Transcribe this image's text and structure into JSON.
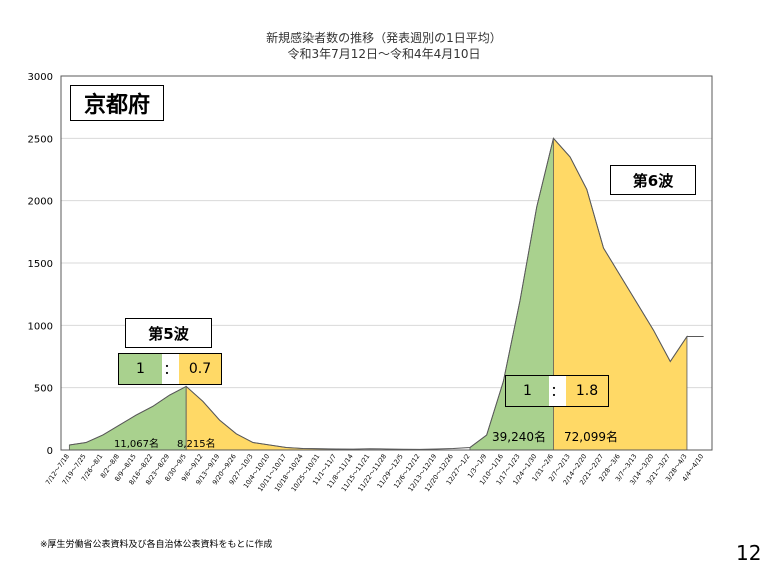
{
  "header": {
    "title_line1": "新規感染者数の推移（発表週別の1日平均）",
    "title_line2": "令和3年7月12日～令和4年4月10日"
  },
  "region_label": "京都府",
  "waves": {
    "wave5": {
      "label": "第5波",
      "ratio_left": "1",
      "ratio_sep": "：",
      "ratio_right": "0.7",
      "count_left": "11,067名",
      "count_right": "8,215名"
    },
    "wave6": {
      "label": "第6波",
      "ratio_left": "1",
      "ratio_sep": "：",
      "ratio_right": "1.8",
      "count_left": "39,240名",
      "count_right": "72,099名"
    }
  },
  "footnote": "※厚生労働省公表資料及び各自治体公表資料をもとに作成",
  "page_number": "12",
  "colors": {
    "green": "#a9d18e",
    "yellow": "#ffd966",
    "grid": "#d9d9d9",
    "outline": "#595959"
  },
  "chart_data": {
    "type": "area",
    "ylim": [
      0,
      3000
    ],
    "yticks": [
      0,
      500,
      1000,
      1500,
      2000,
      2500,
      3000
    ],
    "grid": true,
    "categories": [
      "7/12～7/18",
      "7/19～7/25",
      "7/26～8/1",
      "8/2～8/8",
      "8/9～8/15",
      "8/16～8/22",
      "8/23～8/29",
      "8/30～9/5",
      "9/6～9/12",
      "9/13～9/19",
      "9/20～9/26",
      "9/27～10/3",
      "10/4～10/10",
      "10/11～10/17",
      "10/18～10/24",
      "10/25～10/31",
      "11/1～11/7",
      "11/8～11/14",
      "11/15～11/21",
      "11/22～11/28",
      "11/29～12/5",
      "12/6～12/12",
      "12/13～12/19",
      "12/20～12/26",
      "12/27～1/2",
      "1/3～1/9",
      "1/10～1/16",
      "1/17～1/23",
      "1/24～1/30",
      "1/31～2/6",
      "2/7～2/13",
      "2/14～2/20",
      "2/21～2/27",
      "2/28～3/6",
      "3/7～3/13",
      "3/14～3/20",
      "3/21～3/27",
      "3/28～4/3",
      "4/4～4/10"
    ],
    "values": [
      40,
      60,
      120,
      200,
      280,
      350,
      440,
      510,
      390,
      240,
      130,
      60,
      40,
      20,
      12,
      10,
      8,
      7,
      10,
      8,
      6,
      5,
      8,
      12,
      20,
      120,
      550,
      1200,
      1950,
      2500,
      2350,
      2090,
      1620,
      1400,
      1180,
      960,
      710,
      910,
      910
    ],
    "segments": [
      {
        "from": 0,
        "to": 7,
        "color": "green"
      },
      {
        "from": 7,
        "to": 16,
        "color": "yellow"
      },
      {
        "from": 24,
        "to": 30,
        "color": "green"
      },
      {
        "from": 29,
        "to": 37,
        "color": "yellow"
      }
    ]
  }
}
